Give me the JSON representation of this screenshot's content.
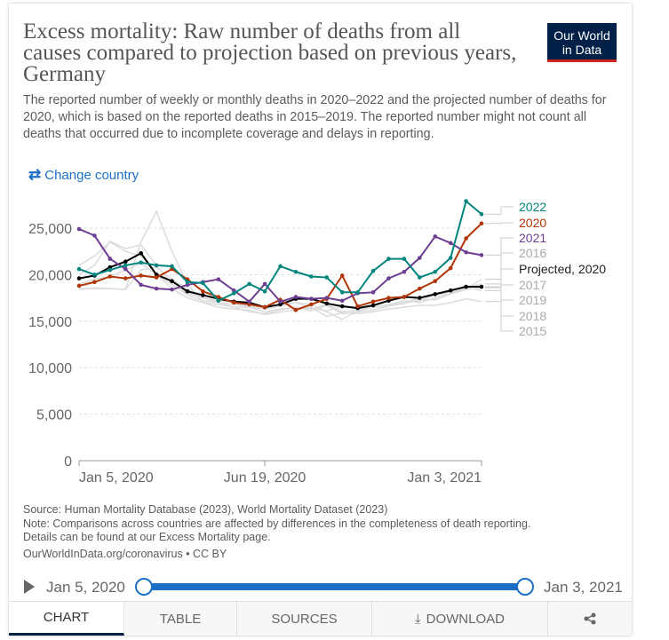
{
  "header": {
    "title": "Excess mortality: Raw number of deaths from all causes compared to projection based on previous years, Germany",
    "subtitle": "The reported number of weekly or monthly deaths in 2020–2022 and the projected number of deaths for 2020, which is based on the reported deaths in 2015–2019. The reported number might not count all deaths that occurred due to incomplete coverage and delays in reporting.",
    "logo": "Our World in Data",
    "change_country": "Change country",
    "change_icon": "swap-arrows-icon"
  },
  "chart_data": {
    "type": "line",
    "xlabel": "",
    "ylabel": "",
    "x_ticks": [
      "Jan 5, 2020",
      "Jun 19, 2020",
      "Jan 3, 2021"
    ],
    "x_weeks": [
      0,
      2,
      4,
      6,
      8,
      10,
      12,
      14,
      16,
      18,
      20,
      22,
      24,
      26,
      28,
      30,
      32,
      34,
      36,
      38,
      40,
      42,
      44,
      46,
      48,
      50,
      52
    ],
    "y_ticks": [
      "0",
      "5,000",
      "10,000",
      "15,000",
      "20,000",
      "25,000"
    ],
    "ylim": [
      0,
      27000
    ],
    "grid": true,
    "legend": "right-labels",
    "series": [
      {
        "name": "2015",
        "color": "#dcdcdc",
        "values": [
          18500,
          18500,
          18500,
          18400,
          23500,
          26800,
          22500,
          19000,
          17000,
          16500,
          16300,
          16200,
          15700,
          16000,
          16200,
          16500,
          15500,
          15900,
          15800,
          16000,
          16300,
          16500,
          16700,
          16700,
          17000,
          17400,
          17100
        ]
      },
      {
        "name": "2016",
        "color": "#dcdcdc",
        "values": [
          21000,
          22000,
          23500,
          22500,
          22000,
          20000,
          18500,
          17500,
          17000,
          16800,
          16500,
          16000,
          15800,
          16200,
          16500,
          16300,
          16800,
          16000,
          16200,
          16500,
          16800,
          17200,
          17000,
          17500,
          18000,
          18500,
          19500
        ]
      },
      {
        "name": "2017",
        "color": "#dcdcdc",
        "values": [
          20000,
          21000,
          23600,
          22800,
          23200,
          21000,
          19000,
          17800,
          17200,
          17000,
          16800,
          16500,
          16300,
          16600,
          17000,
          16400,
          16100,
          16600,
          16300,
          16500,
          16700,
          17000,
          17200,
          17800,
          18200,
          18600,
          19000
        ]
      },
      {
        "name": "2018",
        "color": "#dcdcdc",
        "values": [
          18400,
          18600,
          18500,
          18400,
          20500,
          20800,
          19500,
          18500,
          17500,
          17000,
          16500,
          16500,
          16000,
          16300,
          16500,
          16100,
          16700,
          15800,
          16000,
          16200,
          16600,
          16900,
          17300,
          17300,
          17900,
          18400,
          18600
        ]
      },
      {
        "name": "2019",
        "color": "#dcdcdc",
        "values": [
          19000,
          19500,
          19800,
          20500,
          21200,
          20000,
          18900,
          18000,
          17500,
          17200,
          17000,
          16600,
          16300,
          16800,
          17000,
          16800,
          16000,
          15200,
          16100,
          16500,
          16700,
          17000,
          17500,
          17800,
          18100,
          18600,
          18300
        ]
      },
      {
        "name": "Projected, 2020",
        "color": "#000000",
        "values": [
          19600,
          19900,
          20800,
          21400,
          22300,
          20000,
          19300,
          18200,
          17800,
          17400,
          17100,
          17000,
          16500,
          16800,
          17400,
          17400,
          16900,
          16600,
          16400,
          16700,
          17200,
          17600,
          17500,
          17900,
          18300,
          18700,
          18700
        ]
      },
      {
        "name": "2020",
        "color": "#b13507",
        "values": [
          18800,
          19200,
          19800,
          19600,
          19900,
          19700,
          20600,
          19500,
          18200,
          17600,
          17000,
          16800,
          16500,
          17300,
          16200,
          16800,
          17400,
          19900,
          16600,
          17100,
          17500,
          17600,
          18500,
          19300,
          20700,
          23900,
          25500
        ]
      },
      {
        "name": "2021",
        "color": "#6d3e91",
        "values": [
          24900,
          24200,
          21700,
          20600,
          18900,
          18500,
          18400,
          18900,
          19200,
          19500,
          18300,
          17100,
          19000,
          17100,
          17600,
          17400,
          17500,
          17200,
          18000,
          18100,
          19600,
          20300,
          21800,
          24100,
          23400,
          22400,
          22100
        ]
      },
      {
        "name": "2022",
        "color": "#00847e",
        "values": [
          20600,
          20000,
          20500,
          21000,
          21300,
          21000,
          20900,
          19200,
          19100,
          17200,
          18000,
          19000,
          18200,
          20900,
          20300,
          19800,
          19700,
          18100,
          18100,
          20400,
          21700,
          21700,
          19700,
          20300,
          21800,
          27900,
          26500
        ]
      }
    ]
  },
  "footer": {
    "source": "Source: Human Mortality Database (2023), World Mortality Dataset (2023)",
    "note": "Note: Comparisons across countries are affected by differences in the completeness of death reporting.",
    "details": "Details can be found at our Excess Mortality page.",
    "license": "OurWorldInData.org/coronavirus • CC BY"
  },
  "timeline": {
    "start": "Jan 5, 2020",
    "end": "Jan 3, 2021",
    "range": [
      0,
      1
    ],
    "play_icon": "play-icon"
  },
  "tabs": [
    {
      "label": "CHART",
      "active": true
    },
    {
      "label": "TABLE"
    },
    {
      "label": "SOURCES"
    },
    {
      "label": "DOWNLOAD",
      "icon": "download-icon"
    },
    {
      "label": "",
      "icon": "share-icon"
    }
  ]
}
